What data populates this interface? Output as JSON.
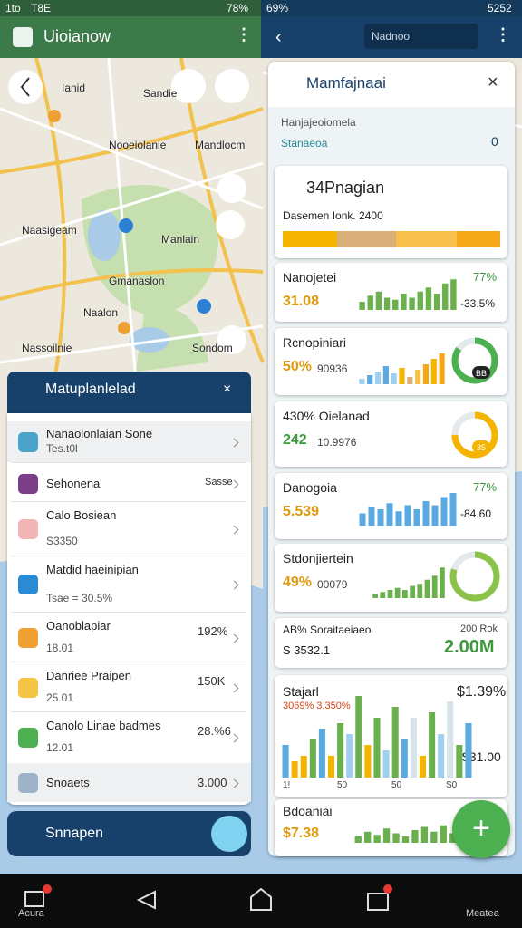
{
  "status_left": {
    "time": "1to",
    "carrier": "T8E",
    "battery": "78%"
  },
  "status_right": {
    "battery": "69%",
    "time": "5252"
  },
  "left_app": {
    "title": "Uioianow"
  },
  "map": {
    "labels": [
      "Ianid",
      "Sandie",
      "Nooeiolanie",
      "Mandlocm",
      "Naasigeam",
      "Manlain",
      "Gmanaslon",
      "Naalon",
      "Nassoilnie",
      "Sondom"
    ]
  },
  "left_panel": {
    "title": "Matuplanlelad",
    "items": [
      {
        "title": "Nanaolonlaian Sone",
        "subtitle": "Tes.t0l"
      },
      {
        "title": "Sehonena",
        "value": "Sasse"
      },
      {
        "title": "Calo Bosiean",
        "subtitle": "S3350"
      },
      {
        "title": "Matdid haeinipian",
        "subtitle": "Tsae = 30.5%"
      },
      {
        "title": "Oanoblapiar",
        "subtitle": "18.01",
        "value": "192%"
      },
      {
        "title": "Danriee Praipen",
        "subtitle": "25.01",
        "value": "150K"
      },
      {
        "title": "Canolo Linae badmes",
        "subtitle": "12.01",
        "value": "28.%6"
      },
      {
        "title": "Snoaets",
        "value": "3.000"
      }
    ],
    "footer": "Snnapen"
  },
  "right_app": {
    "search": "Nadnoo"
  },
  "right_panel": {
    "title": "Mamfajnaai",
    "subtitle": "Hanjajeoiomela",
    "tag": "Stanaeoa",
    "tag_value": "0",
    "cards": [
      {
        "title": "34Pnagian",
        "caption": "Dasemen Ionk. 2400",
        "progress": [
          25,
          27,
          28,
          20
        ],
        "progress_colors": [
          "#f4b400",
          "#d9b07a",
          "#f7c04a",
          "#f4a818"
        ]
      },
      {
        "title": "Nanojetei",
        "value": "31.08",
        "percent": "77%",
        "change": "-33.5%",
        "bars": [
          20,
          35,
          45,
          30,
          25,
          40,
          30,
          45,
          55,
          40,
          65,
          75
        ],
        "color": "#6ab04c"
      },
      {
        "title": "Rcnopiniari",
        "value": "50%",
        "sub": "90936",
        "bars": [
          15,
          25,
          35,
          50,
          30,
          45,
          20,
          40,
          55,
          70,
          85
        ],
        "bar_colors": [
          "#9fd0f0",
          "#5aa9e0",
          "#9fd0f0",
          "#5aa9e0",
          "#9fd0f0",
          "#f4b400",
          "#d9b07a",
          "#f7c04a",
          "#f4a818",
          "#f4b400",
          "#f4a818"
        ],
        "ring": 85,
        "ring_color": "#4caf50",
        "ring_label": "BB"
      },
      {
        "title": "430% Oielanad",
        "value": "242",
        "sub": "10.9976",
        "ring": 75,
        "ring_color": "#f4b400",
        "ring_label": "35"
      },
      {
        "title": "Danogoia",
        "value": "5.539",
        "percent": "77%",
        "change": "-84.60",
        "bars": [
          30,
          45,
          40,
          55,
          35,
          50,
          40,
          60,
          50,
          70,
          80
        ],
        "color": "#5aa9e0"
      },
      {
        "title": "Stdonjiertein",
        "value": "49%",
        "sub": "00079",
        "bars": [
          10,
          15,
          20,
          25,
          20,
          30,
          35,
          45,
          55,
          75
        ],
        "color": "#6ab04c",
        "ring": 80,
        "ring_color": "#8bc34a"
      },
      {
        "title": "AB% Soraitaeiaeo",
        "note": "200 Rok",
        "sub": "S 3532.1",
        "value": "2.00M"
      },
      {
        "title": "Stajarl",
        "sub": "3069% 3.350%",
        "value": "$1.39%",
        "bars": [
          30,
          15,
          20,
          35,
          45,
          20,
          50,
          40,
          75,
          30,
          55,
          25,
          65,
          35,
          55,
          20,
          60,
          40,
          70,
          30,
          50
        ],
        "bar_colors": [
          "#5aa9e0",
          "#f4b400",
          "#f4b400",
          "#6ab04c",
          "#5aa9e0",
          "#f4b400",
          "#6ab04c",
          "#9fd0f0",
          "#6ab04c",
          "#f4b400",
          "#6ab04c",
          "#9fd0f0",
          "#6ab04c",
          "#5aa9e0",
          "#d7e3e8",
          "#f4b400",
          "#6ab04c",
          "#9fd0f0",
          "#d7e3e8",
          "#6ab04c",
          "#5aa9e0"
        ],
        "axis": [
          "1!",
          "50",
          "50",
          "S0"
        ],
        "axis_value": "$31.00"
      },
      {
        "title": "Bdoaniai",
        "value": "$7.38",
        "bars": [
          20,
          35,
          25,
          45,
          30,
          20,
          40,
          50,
          35,
          55,
          30
        ],
        "color": "#6ab04c"
      }
    ]
  },
  "bottom_nav": {
    "left": "Acura",
    "right": "Meatea"
  }
}
